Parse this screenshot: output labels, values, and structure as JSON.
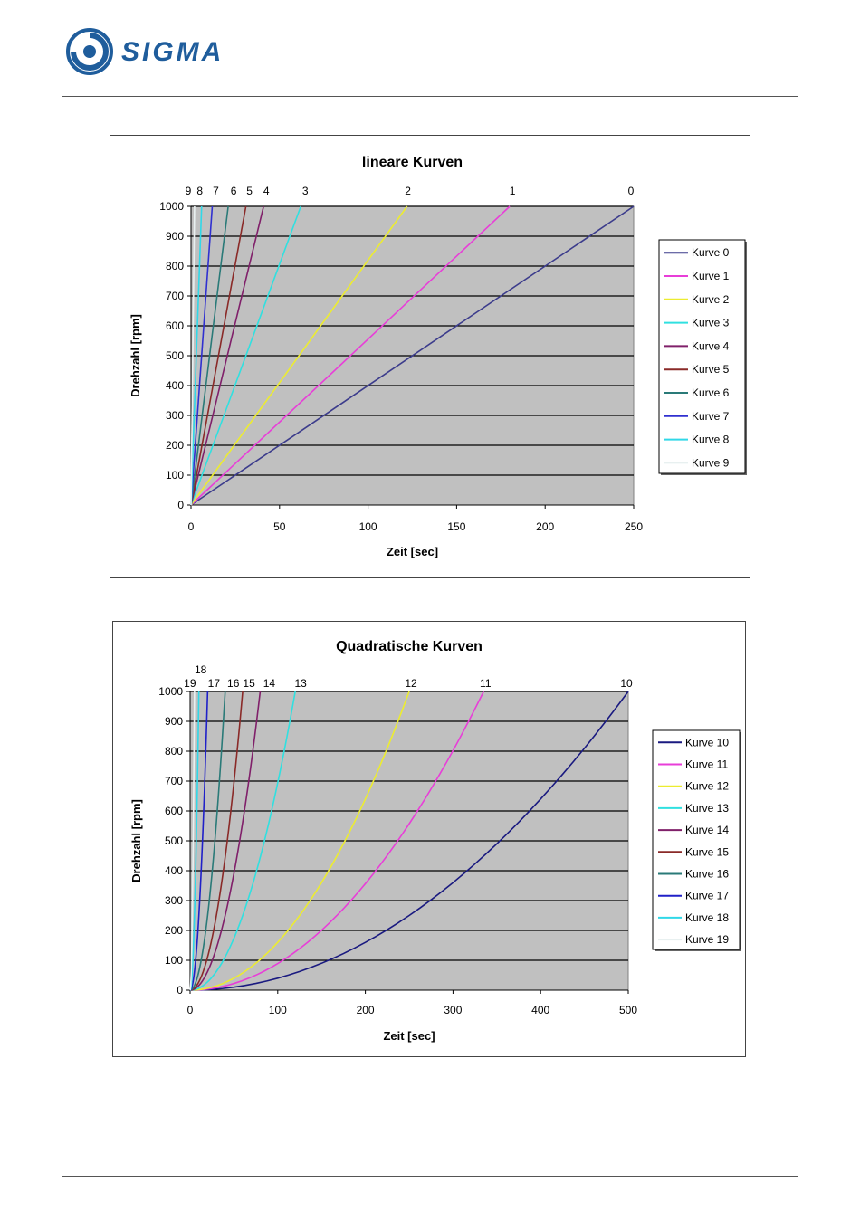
{
  "header": {
    "brand": "SIGMA",
    "brand_color": "#1f5d9c"
  },
  "chart_data": [
    {
      "type": "line",
      "title": "lineare Kurven",
      "xlabel": "Zeit [sec]",
      "ylabel": "Drehzahl [rpm]",
      "xlim": [
        0,
        250
      ],
      "ylim": [
        0,
        1000
      ],
      "xticks": [
        "0",
        "50",
        "100",
        "150",
        "200",
        "250"
      ],
      "yticks": [
        "0",
        "100",
        "200",
        "300",
        "400",
        "500",
        "600",
        "700",
        "800",
        "900",
        "1000"
      ],
      "grid": true,
      "plot_background": "#c0c0c0",
      "legend_position": "right",
      "series": [
        {
          "name": "Kurve 0",
          "end_label": "0",
          "color": "#3c3c8c",
          "x": [
            0,
            250
          ],
          "y": [
            0,
            1000
          ]
        },
        {
          "name": "Kurve 1",
          "end_label": "1",
          "color": "#e83ed8",
          "x": [
            0,
            180
          ],
          "y": [
            0,
            1000
          ]
        },
        {
          "name": "Kurve 2",
          "end_label": "2",
          "color": "#ecec30",
          "x": [
            0,
            122
          ],
          "y": [
            0,
            1000
          ]
        },
        {
          "name": "Kurve 3",
          "end_label": "3",
          "color": "#30e0e0",
          "x": [
            0,
            62
          ],
          "y": [
            0,
            1000
          ]
        },
        {
          "name": "Kurve 4",
          "end_label": "4",
          "color": "#80206a",
          "x": [
            0,
            41
          ],
          "y": [
            0,
            1000
          ]
        },
        {
          "name": "Kurve 5",
          "end_label": "5",
          "color": "#8a2a28",
          "x": [
            0,
            31
          ],
          "y": [
            0,
            1000
          ]
        },
        {
          "name": "Kurve 6",
          "end_label": "6",
          "color": "#2a7a78",
          "x": [
            0,
            21
          ],
          "y": [
            0,
            1000
          ]
        },
        {
          "name": "Kurve 7",
          "end_label": "7",
          "color": "#3030d0",
          "x": [
            0,
            12
          ],
          "y": [
            0,
            1000
          ]
        },
        {
          "name": "Kurve 8",
          "end_label": "8",
          "color": "#30d8e8",
          "x": [
            0,
            6
          ],
          "y": [
            0,
            1000
          ]
        },
        {
          "name": "Kurve 9",
          "end_label": "9",
          "color": "#e8f0f0",
          "x": [
            0,
            2
          ],
          "y": [
            0,
            1000
          ]
        }
      ]
    },
    {
      "type": "line",
      "title": "Quadratische Kurven",
      "xlabel": "Zeit [sec]",
      "ylabel": "Drehzahl [rpm]",
      "xlim": [
        0,
        500
      ],
      "ylim": [
        0,
        1000
      ],
      "xticks": [
        "0",
        "100",
        "200",
        "300",
        "400",
        "500"
      ],
      "yticks": [
        "0",
        "100",
        "200",
        "300",
        "400",
        "500",
        "600",
        "700",
        "800",
        "900",
        "1000"
      ],
      "grid": true,
      "plot_background": "#c0c0c0",
      "legend_position": "right",
      "series": [
        {
          "name": "Kurve 10",
          "end_label": "10",
          "color": "#1a1a80",
          "x": [
            0,
            100,
            200,
            300,
            400,
            500
          ],
          "y": [
            0,
            40,
            160,
            360,
            640,
            1000
          ]
        },
        {
          "name": "Kurve 11",
          "end_label": "11",
          "color": "#e83ed8",
          "x": [
            0,
            67,
            134,
            201,
            268,
            335
          ],
          "y": [
            0,
            40,
            160,
            360,
            640,
            1000
          ]
        },
        {
          "name": "Kurve 12",
          "end_label": "12",
          "color": "#ecec30",
          "x": [
            0,
            50,
            100,
            150,
            200,
            250
          ],
          "y": [
            0,
            40,
            160,
            360,
            640,
            1000
          ]
        },
        {
          "name": "Kurve 13",
          "end_label": "13",
          "color": "#30e0e0",
          "x": [
            0,
            24,
            48,
            72,
            96,
            120
          ],
          "y": [
            0,
            40,
            160,
            360,
            640,
            1000
          ]
        },
        {
          "name": "Kurve 14",
          "end_label": "14",
          "color": "#80206a",
          "x": [
            0,
            16,
            32,
            48,
            64,
            80
          ],
          "y": [
            0,
            40,
            160,
            360,
            640,
            1000
          ]
        },
        {
          "name": "Kurve 15",
          "end_label": "15",
          "color": "#8a2a28",
          "x": [
            0,
            12,
            24,
            36,
            48,
            60
          ],
          "y": [
            0,
            40,
            160,
            360,
            640,
            1000
          ]
        },
        {
          "name": "Kurve 16",
          "end_label": "16",
          "color": "#2a7a78",
          "x": [
            0,
            8,
            16,
            24,
            32,
            40
          ],
          "y": [
            0,
            40,
            160,
            360,
            640,
            1000
          ]
        },
        {
          "name": "Kurve 17",
          "end_label": "17",
          "color": "#2020c8",
          "x": [
            0,
            4,
            8,
            12,
            16,
            20
          ],
          "y": [
            0,
            40,
            160,
            360,
            640,
            1000
          ]
        },
        {
          "name": "Kurve 18",
          "end_label": "18",
          "color": "#30d8e8",
          "x": [
            0,
            2,
            4,
            6,
            8,
            10
          ],
          "y": [
            0,
            40,
            160,
            360,
            640,
            1000
          ]
        },
        {
          "name": "Kurve 19",
          "end_label": "19",
          "color": "#e8f0f0",
          "x": [
            0,
            1,
            2,
            3,
            4,
            5
          ],
          "y": [
            0,
            40,
            160,
            360,
            640,
            1000
          ]
        }
      ]
    }
  ]
}
